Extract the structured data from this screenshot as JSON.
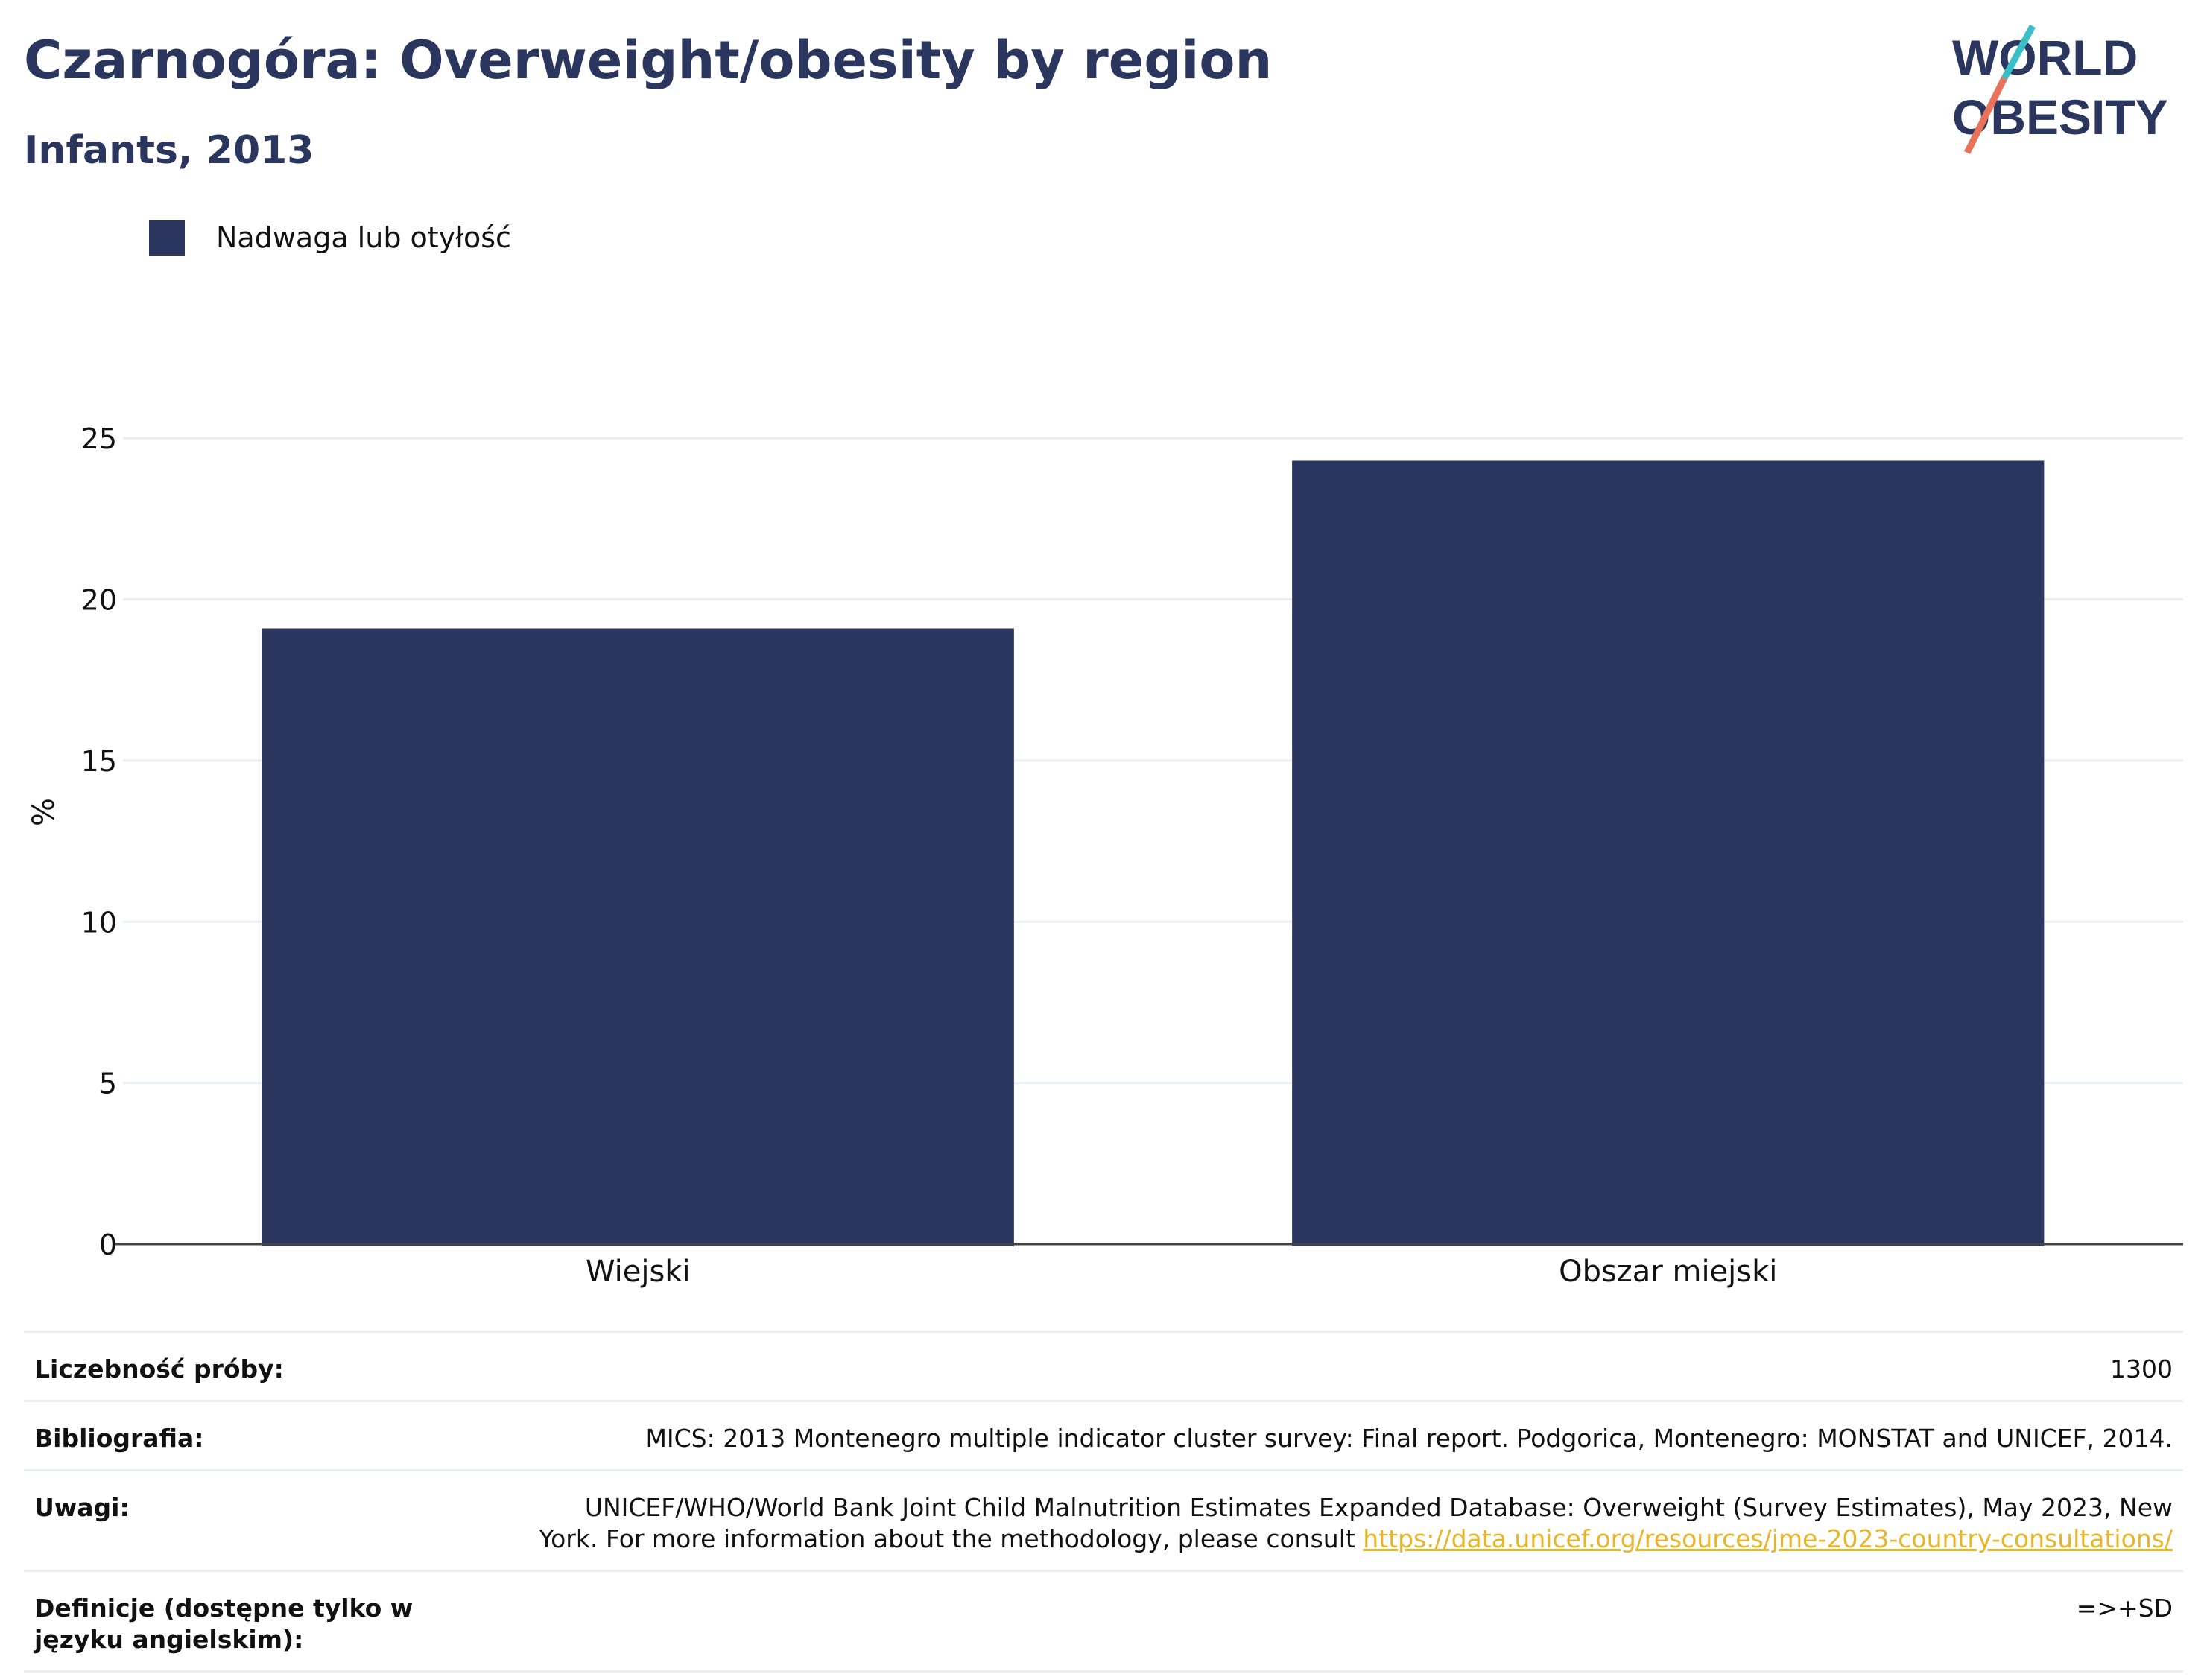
{
  "header": {
    "title": "Czarnogóra: Overweight/obesity by region",
    "subtitle": "Infants, 2013"
  },
  "logo": {
    "line1": "WORLD",
    "line2": "OBESITY",
    "text_color": "#2b365f",
    "accent_teal": "#3bbfc6",
    "accent_coral": "#e8735a"
  },
  "legend": {
    "items": [
      {
        "label": "Nadwaga lub otyłość",
        "color": "#2b365f"
      }
    ]
  },
  "chart_data": {
    "type": "bar",
    "categories": [
      "Wiejski",
      "Obszar miejski"
    ],
    "series": [
      {
        "name": "Nadwaga lub otyłość",
        "values": [
          19.1,
          24.3
        ],
        "color": "#2b365f"
      }
    ],
    "title": "Czarnogóra: Overweight/obesity by region",
    "subtitle": "Infants, 2013",
    "xlabel": "",
    "ylabel": "%",
    "ylim": [
      0,
      27.5
    ],
    "yticks": [
      0,
      5,
      10,
      15,
      20,
      25
    ],
    "grid": true,
    "legend_position": "top-left"
  },
  "meta": {
    "sample_size_label": "Liczebność próby:",
    "sample_size_value": "1300",
    "bibliography_label": "Bibliografia:",
    "bibliography_value": "MICS: 2013 Montenegro multiple indicator cluster survey: Final report. Podgorica, Montenegro: MONSTAT and UNICEF, 2014.",
    "notes_label": "Uwagi:",
    "notes_line1": "UNICEF/WHO/World Bank Joint Child Malnutrition Estimates Expanded Database: Overweight (Survey Estimates), May 2023, New",
    "notes_line2_prefix": "York. For more information about the methodology, please consult ",
    "notes_link": "https://data.unicef.org/resources/jme-2023-country-consultations/",
    "definitions_label": "Definicje (dostępne tylko w języku angielskim):",
    "definitions_value": "=>+SD"
  }
}
